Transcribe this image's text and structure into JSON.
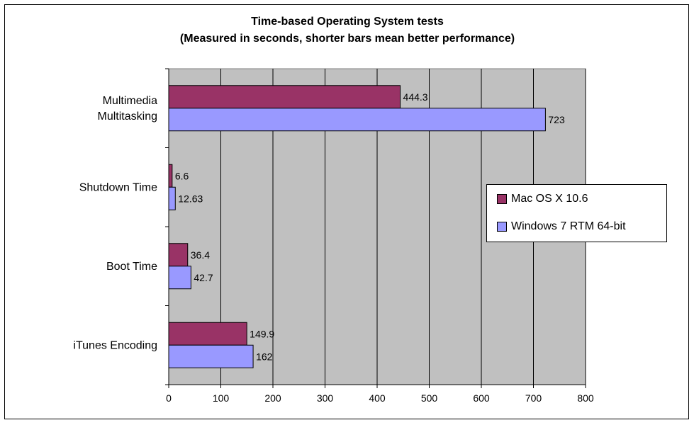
{
  "chart_data": {
    "type": "bar",
    "orientation": "horizontal",
    "title": "Time-based Operating System tests",
    "subtitle": "(Measured in seconds, shorter bars mean better performance)",
    "categories": [
      "Multimedia Multitasking",
      "Shutdown Time",
      "Boot Time",
      "iTunes Encoding"
    ],
    "series": [
      {
        "name": "Mac OS X 10.6",
        "values": [
          444.3,
          6.6,
          36.4,
          149.9
        ],
        "labels": [
          "444.3",
          "6.6",
          "36.4",
          "149.9"
        ],
        "color": "#993366"
      },
      {
        "name": "Windows 7 RTM 64-bit",
        "values": [
          723,
          12.63,
          42.7,
          162
        ],
        "labels": [
          "723",
          "12.63",
          "42.7",
          "162"
        ],
        "color": "#9999ff"
      }
    ],
    "xlim": [
      0,
      800
    ],
    "xticks": [
      0,
      100,
      200,
      300,
      400,
      500,
      600,
      700,
      800
    ],
    "grid": true,
    "plot_background": "#c0c0c0",
    "legend_position": "right"
  }
}
